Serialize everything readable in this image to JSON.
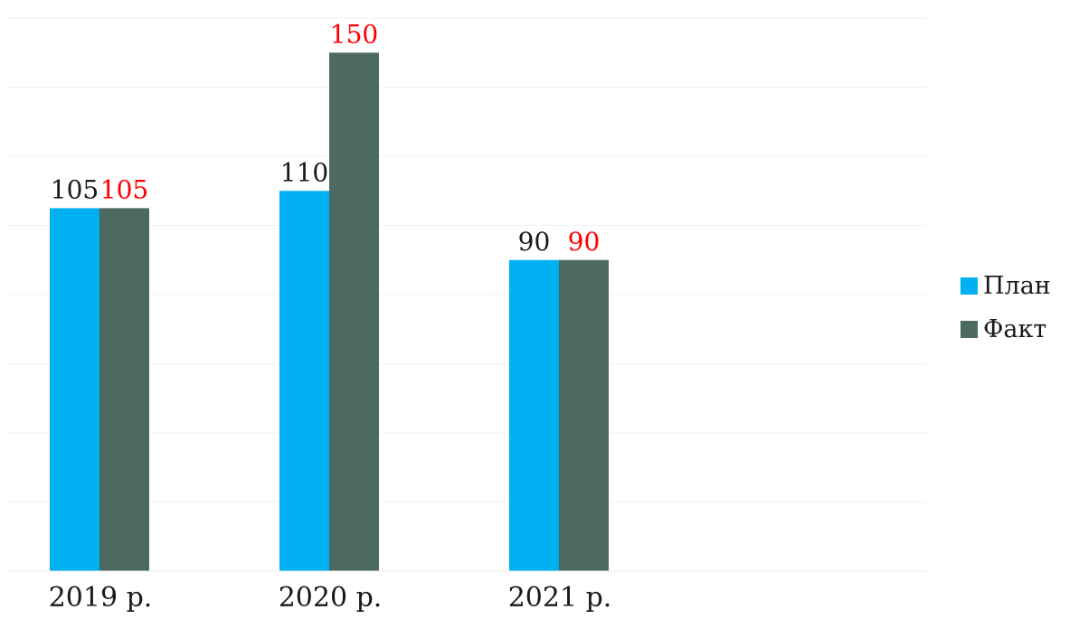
{
  "chart_data": {
    "type": "bar",
    "categories": [
      "2019 р.",
      "2020 р.",
      "2021 р."
    ],
    "series": [
      {
        "name": "План",
        "values": [
          105,
          110,
          90
        ],
        "color": "#00b0f0",
        "label_color": "#1a1a1a"
      },
      {
        "name": "Факт",
        "values": [
          105,
          150,
          90
        ],
        "color": "#4d6a62",
        "label_color": "#ff0000"
      }
    ],
    "ylim": [
      0,
      160
    ],
    "grid": true,
    "legend_position": "right"
  }
}
